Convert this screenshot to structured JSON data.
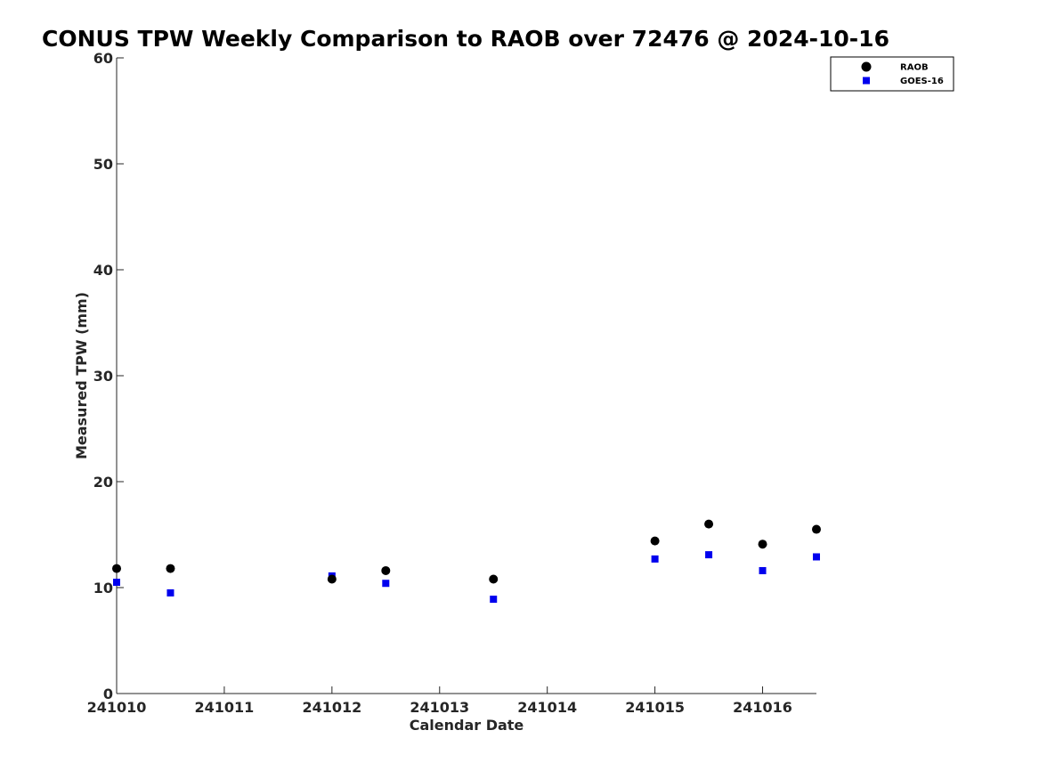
{
  "chart_data": {
    "type": "scatter",
    "title": "CONUS TPW Weekly Comparison to RAOB over 72476 @ 2024-10-16",
    "xlabel": "Calendar Date",
    "ylabel": "Measured TPW (mm)",
    "xlim": [
      0,
      6.5
    ],
    "ylim": [
      0,
      60
    ],
    "x_ticks": [
      0,
      1,
      2,
      3,
      4,
      5,
      6
    ],
    "x_tick_labels": [
      "241010",
      "241011",
      "241012",
      "241013",
      "241014",
      "241015",
      "241016"
    ],
    "y_ticks": [
      0,
      10,
      20,
      30,
      40,
      50,
      60
    ],
    "y_tick_labels": [
      "0",
      "10",
      "20",
      "30",
      "40",
      "50",
      "60"
    ],
    "grid": false,
    "legend_position": "top-right",
    "series": [
      {
        "name": "RAOB",
        "marker": "circle",
        "color": "#000000",
        "x": [
          0,
          0.5,
          2,
          2.5,
          3.5,
          5,
          5.5,
          6,
          6.5
        ],
        "y": [
          11.8,
          11.8,
          10.8,
          11.6,
          10.8,
          14.4,
          16.0,
          14.1,
          15.5
        ]
      },
      {
        "name": "GOES-16",
        "marker": "square",
        "color": "#0000ee",
        "x": [
          0,
          0.5,
          2,
          2.5,
          3.5,
          5,
          5.5,
          6,
          6.5
        ],
        "y": [
          10.5,
          9.5,
          11.1,
          10.4,
          8.9,
          12.7,
          13.1,
          11.6,
          12.9
        ]
      }
    ]
  }
}
